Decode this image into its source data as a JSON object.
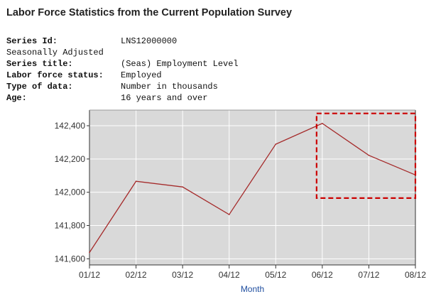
{
  "header": {
    "title": "Labor Force Statistics from the Current Population Survey"
  },
  "meta": [
    {
      "label": "Series Id:",
      "value": "LNS12000000"
    },
    {
      "label": "Seasonally Adjusted",
      "value": ""
    },
    {
      "label": "Series title:",
      "value": "(Seas) Employment Level"
    },
    {
      "label": "Labor force status:",
      "value": "Employed"
    },
    {
      "label": "Type of data:",
      "value": "Number in thousands"
    },
    {
      "label": "Age:",
      "value": "16 years and over"
    }
  ],
  "chart_data": {
    "type": "line",
    "title": "",
    "xlabel": "Month",
    "ylabel": "",
    "categories": [
      "01/12",
      "02/12",
      "03/12",
      "04/12",
      "05/12",
      "06/12",
      "07/12",
      "08/12"
    ],
    "series": [
      {
        "name": "Employment Level",
        "values": [
          141638,
          142066,
          142032,
          141866,
          142289,
          142414,
          142222,
          142104
        ]
      }
    ],
    "yticks": [
      141600,
      141800,
      142000,
      142200,
      142400
    ],
    "ytick_labels": [
      "141,600",
      "141,800",
      "142,000",
      "142,200",
      "142,400"
    ],
    "ylim": [
      141563,
      142494
    ],
    "grid": true,
    "highlight": {
      "from": "06/12",
      "to": "08/12",
      "ylow": 141965,
      "yhigh": 142474
    },
    "colors": {
      "line": "#a52a2a",
      "plot_bg": "#d9d9d9",
      "grid": "#ffffff",
      "highlight": "#cc0000",
      "xlabel": "#1f4e9f"
    }
  }
}
